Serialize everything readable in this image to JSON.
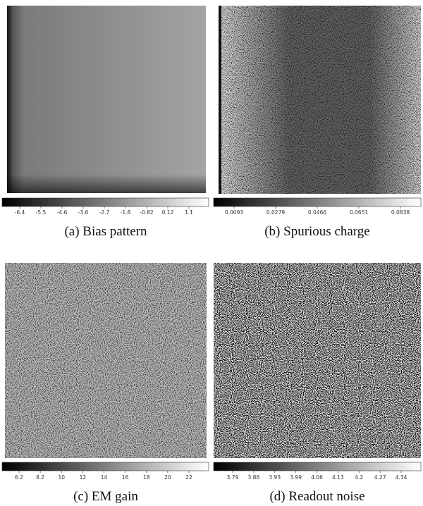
{
  "panels": [
    {
      "caption": "(a)  Bias pattern",
      "colorbar_ticks": [
        "-6.4",
        "-5.5",
        "-4.6",
        "-3.6",
        "-2.7",
        "-1.8",
        "-0.82",
        "0.12",
        "1.1"
      ]
    },
    {
      "caption": "(b)  Spurious charge",
      "colorbar_ticks": [
        "0.0093",
        "0.0279",
        "0.0466",
        "0.0651",
        "0.0838"
      ]
    },
    {
      "caption": "(c)  EM gain",
      "colorbar_ticks": [
        "6.2",
        "8.2",
        "10",
        "12",
        "14",
        "16",
        "18",
        "20",
        "22"
      ]
    },
    {
      "caption": "(d)  Readout noise",
      "colorbar_ticks": [
        "3.79",
        "3.86",
        "3.93",
        "3.99",
        "4.06",
        "4.13",
        "4.2",
        "4.27",
        "4.34"
      ]
    }
  ]
}
